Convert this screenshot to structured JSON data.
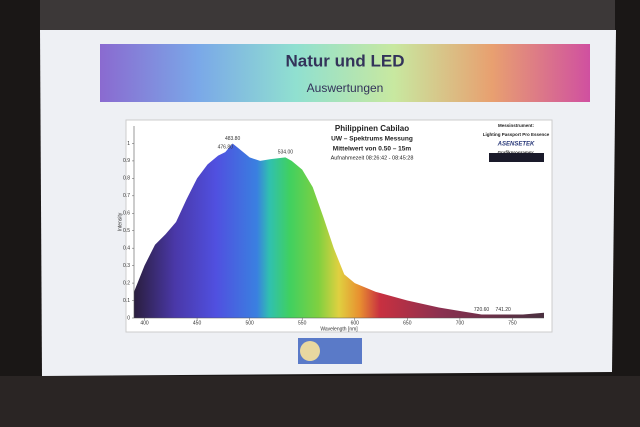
{
  "header": {
    "title": "Natur und LED",
    "subtitle": "Auswertungen"
  },
  "chart_data": {
    "type": "area",
    "title": "Philippinen Cabilao",
    "subtitle": "UW – Spektrums Messung",
    "notes": [
      "Mittelwert von 0.50 – 15m",
      "Aufnahmezeit 08:26:42 - 08:45:28"
    ],
    "instrument": [
      "Messinstrument:",
      "Lighting Passport Pro Essence",
      "ASENSETEK",
      "Grafikprogramm:"
    ],
    "x_label": "Wavelength [nm]",
    "y_label": "Intensity",
    "x": [
      390,
      400,
      410,
      420,
      430,
      440,
      450,
      460,
      470,
      476.8,
      483.8,
      490,
      500,
      510,
      520,
      534,
      540,
      550,
      560,
      570,
      580,
      590,
      600,
      620,
      650,
      680,
      700,
      720.6,
      741.2,
      760,
      780
    ],
    "values": [
      0.15,
      0.3,
      0.42,
      0.48,
      0.55,
      0.68,
      0.8,
      0.88,
      0.93,
      0.95,
      1.0,
      0.97,
      0.92,
      0.9,
      0.91,
      0.92,
      0.9,
      0.85,
      0.75,
      0.58,
      0.4,
      0.25,
      0.2,
      0.15,
      0.1,
      0.06,
      0.04,
      0.02,
      0.02,
      0.02,
      0.03
    ],
    "peaks": {
      "x": [
        476.8,
        483.8,
        534,
        720.6,
        741.2
      ],
      "labels": [
        "476.80",
        "483.80",
        "534.00",
        "720.60",
        "741.20"
      ]
    },
    "xlim": [
      390,
      780
    ],
    "ylim": [
      0,
      1.1
    ],
    "xticks": [
      400,
      450,
      500,
      550,
      600,
      650,
      700,
      750
    ],
    "yticks": [
      0,
      0.1,
      0.2,
      0.3,
      0.4,
      0.5,
      0.6,
      0.7,
      0.8,
      0.9,
      1
    ]
  }
}
